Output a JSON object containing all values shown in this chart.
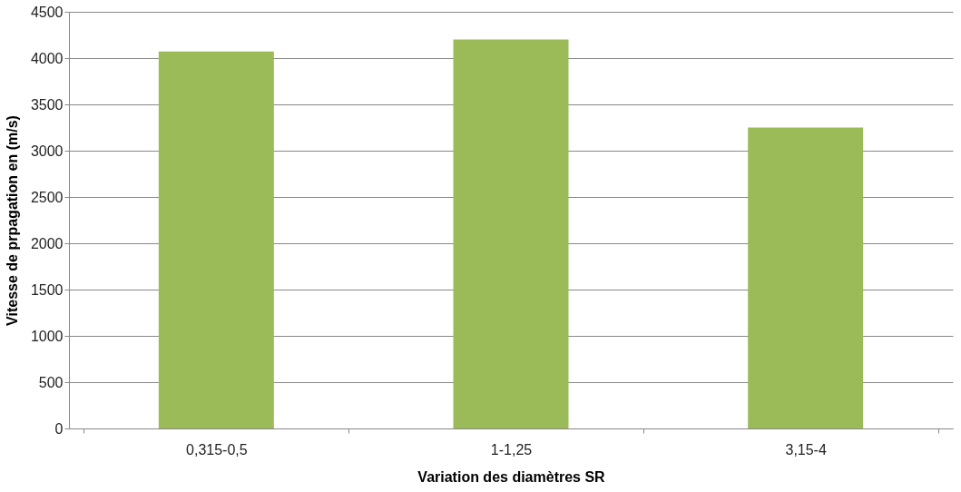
{
  "chart_data": {
    "type": "bar",
    "xlabel": "Variation des diamètres SR",
    "ylabel": "Vitesse de prpagation en (m/s)",
    "categories": [
      "0,315-0,5",
      "1-1,25",
      "3,15-4"
    ],
    "values": [
      4070,
      4200,
      3250
    ],
    "color": "#9bbb59",
    "ylim": [
      0,
      4500
    ],
    "yticks": [
      0,
      500,
      1000,
      1500,
      2000,
      2500,
      3000,
      3500,
      4000,
      4500
    ],
    "grid": "y"
  }
}
